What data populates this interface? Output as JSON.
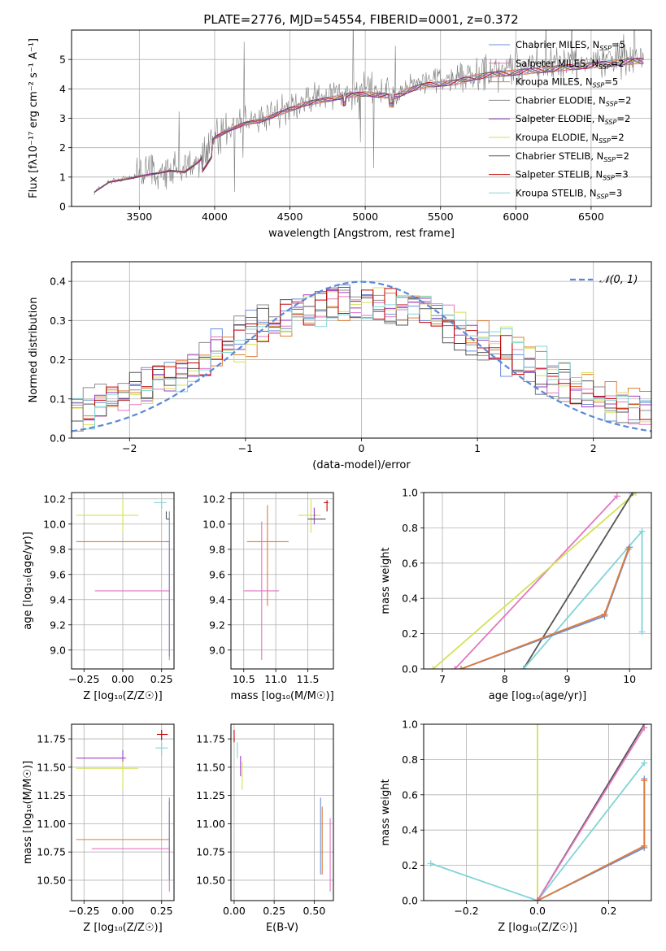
{
  "figure": {
    "title": "PLATE=2776, MJD=54554, FIBERID=0001, z=0.372"
  },
  "colors": {
    "chabrier_miles": "#6b8fd6",
    "salpeter_miles": "#e377c2",
    "kroupa_miles": "#e07b39",
    "chabrier_elodie": "#8c8c8c",
    "salpeter_elodie": "#9b3fc4",
    "kroupa_elodie": "#d4e157",
    "chabrier_stelib": "#555555",
    "salpeter_stelib": "#c00000",
    "kroupa_stelib": "#80d4d8",
    "gauss": "#5b88d6"
  },
  "chart_data": [
    {
      "id": "spectrum",
      "type": "line",
      "title": "PLATE=2776, MJD=54554, FIBERID=0001, z=0.372",
      "xlabel": "wavelength [Angstrom, rest frame]",
      "ylabel": "Flux [fλ10⁻¹⁷ erg cm⁻² s⁻¹ A⁻¹]",
      "xlim": [
        3050,
        6900
      ],
      "ylim": [
        0,
        6
      ],
      "xticks": [
        3500,
        4000,
        4500,
        5000,
        5500,
        6000,
        6500
      ],
      "yticks": [
        0,
        1,
        2,
        3,
        4,
        5
      ],
      "legend_position": "top-right",
      "legend": [
        {
          "key": "chabrier_miles",
          "label": "Chabrier MILES, N",
          "sub": "SSP",
          "suffix": "=5"
        },
        {
          "key": "salpeter_miles",
          "label": "Salpeter MILES, N",
          "sub": "SSP",
          "suffix": "=2"
        },
        {
          "key": "kroupa_miles",
          "label": "Kroupa MILES, N",
          "sub": "SSP",
          "suffix": "=5"
        },
        {
          "key": "chabrier_elodie",
          "label": "Chabrier ELODIE, N",
          "sub": "SSP",
          "suffix": "=2"
        },
        {
          "key": "salpeter_elodie",
          "label": "Salpeter ELODIE, N",
          "sub": "SSP",
          "suffix": "=2"
        },
        {
          "key": "kroupa_elodie",
          "label": "Kroupa ELODIE, N",
          "sub": "SSP",
          "suffix": "=2"
        },
        {
          "key": "chabrier_stelib",
          "label": "Chabrier STELIB, N",
          "sub": "SSP",
          "suffix": "=2"
        },
        {
          "key": "salpeter_stelib",
          "label": "Salpeter STELIB, N",
          "sub": "SSP",
          "suffix": "=3"
        },
        {
          "key": "kroupa_stelib",
          "label": "Kroupa STELIB, N",
          "sub": "SSP",
          "suffix": "=3"
        }
      ],
      "data_continuum": {
        "x": [
          3200,
          3300,
          3400,
          3500,
          3600,
          3700,
          3800,
          3900,
          4000,
          4100,
          4200,
          4300,
          4400,
          4500,
          4600,
          4700,
          4800,
          4900,
          5000,
          5100,
          5200,
          5300,
          5400,
          5500,
          5600,
          5700,
          5800,
          5900,
          6000,
          6100,
          6200,
          6300,
          6400,
          6500,
          6600,
          6700,
          6800
        ],
        "y": [
          0.5,
          0.85,
          0.95,
          1.05,
          1.15,
          1.25,
          1.2,
          1.6,
          2.4,
          2.7,
          2.9,
          3.0,
          3.2,
          3.4,
          3.6,
          3.7,
          3.8,
          3.9,
          3.95,
          3.9,
          3.85,
          4.1,
          4.25,
          4.3,
          4.35,
          4.5,
          4.6,
          4.65,
          4.7,
          4.75,
          4.8,
          4.85,
          4.9,
          4.95,
          5.0,
          5.05,
          5.1
        ]
      }
    },
    {
      "id": "residuals",
      "type": "step",
      "xlabel": "(data-model)/error",
      "ylabel": "Normed distribution",
      "xlim": [
        -2.5,
        2.5
      ],
      "ylim": [
        0,
        0.45
      ],
      "xticks": [
        -2,
        -1,
        0,
        1,
        2
      ],
      "yticks": [
        0.0,
        0.1,
        0.2,
        0.3,
        0.4
      ],
      "legend_position": "top-right",
      "gauss_label": "𝒩(0, 1)",
      "bin_centers": [
        -2.45,
        -2.35,
        -2.25,
        -2.15,
        -2.05,
        -1.95,
        -1.85,
        -1.75,
        -1.65,
        -1.55,
        -1.45,
        -1.35,
        -1.25,
        -1.15,
        -1.05,
        -0.95,
        -0.85,
        -0.75,
        -0.65,
        -0.55,
        -0.45,
        -0.35,
        -0.25,
        -0.15,
        -0.05,
        0.05,
        0.15,
        0.25,
        0.35,
        0.45,
        0.55,
        0.65,
        0.75,
        0.85,
        0.95,
        1.05,
        1.15,
        1.25,
        1.35,
        1.45,
        1.55,
        1.65,
        1.75,
        1.85,
        1.95,
        2.05,
        2.15,
        2.25,
        2.35,
        2.45
      ]
    },
    {
      "id": "age_vs_Z",
      "type": "errorbar",
      "xlabel": "Z [log₁₀(Z/Z☉)]",
      "ylabel": "age  [log₁₀(age/yr)]",
      "xlim": [
        -0.33,
        0.33
      ],
      "ylim": [
        8.85,
        10.25
      ],
      "xticks": [
        -0.25,
        0.0,
        0.25
      ],
      "xticklabels": [
        "−0.25",
        "0.00",
        "0.25"
      ],
      "yticks": [
        9.0,
        9.2,
        9.4,
        9.6,
        9.8,
        10.0,
        10.2
      ],
      "points": [
        {
          "key": "kroupa_elodie",
          "x": 0.0,
          "xlo": -0.3,
          "xhi": 0.1,
          "y": 10.07,
          "ylo": 9.93,
          "yhi": 10.2
        },
        {
          "key": "kroupa_miles",
          "x": 0.3,
          "xlo": -0.3,
          "xhi": 0.3,
          "y": 9.86,
          "ylo": 9.86,
          "yhi": 9.86
        },
        {
          "key": "salpeter_miles",
          "x": 0.3,
          "xlo": -0.18,
          "xhi": 0.3,
          "y": 9.47,
          "ylo": 8.92,
          "yhi": 9.86
        },
        {
          "key": "chabrier_miles",
          "x": 0.3,
          "xlo": 0.28,
          "xhi": 0.3,
          "y": 9.86,
          "ylo": 8.95,
          "yhi": 10.1
        },
        {
          "key": "kroupa_stelib",
          "x": 0.25,
          "xlo": 0.2,
          "xhi": 0.28,
          "y": 10.17,
          "ylo": 10.12,
          "yhi": 10.19
        },
        {
          "key": "chabrier_stelib",
          "x": 0.28,
          "xlo": 0.28,
          "xhi": 0.3,
          "y": 10.04,
          "ylo": 10.04,
          "yhi": 10.1
        }
      ]
    },
    {
      "id": "age_vs_mass",
      "type": "errorbar",
      "xlabel": "mass [log₁₀(M/M☉)]",
      "xlim": [
        10.3,
        11.9
      ],
      "ylim": [
        8.85,
        10.25
      ],
      "xticks": [
        10.5,
        11.0,
        11.5
      ],
      "yticks": [
        9.0,
        9.2,
        9.4,
        9.6,
        9.8,
        10.0,
        10.2
      ],
      "points": [
        {
          "key": "kroupa_elodie",
          "x": 11.55,
          "xlo": 11.35,
          "xhi": 11.7,
          "y": 10.07,
          "ylo": 9.93,
          "yhi": 10.2
        },
        {
          "key": "kroupa_miles",
          "x": 10.87,
          "xlo": 10.55,
          "xhi": 11.2,
          "y": 9.86,
          "ylo": 9.35,
          "yhi": 10.15
        },
        {
          "key": "salpeter_miles",
          "x": 10.78,
          "xlo": 10.5,
          "xhi": 11.05,
          "y": 9.47,
          "ylo": 8.92,
          "yhi": 10.02
        },
        {
          "key": "salpeter_elodie",
          "x": 11.6,
          "xlo": 11.6,
          "xhi": 11.62,
          "y": 10.07,
          "ylo": 10.0,
          "yhi": 10.13
        },
        {
          "key": "salpeter_stelib",
          "x": 11.8,
          "xlo": 11.75,
          "xhi": 11.82,
          "y": 10.17,
          "ylo": 10.1,
          "yhi": 10.19
        },
        {
          "key": "chabrier_stelib",
          "x": 11.62,
          "xlo": 11.5,
          "xhi": 11.78,
          "y": 10.04,
          "ylo": 10.04,
          "yhi": 10.04
        }
      ]
    },
    {
      "id": "weight_vs_age",
      "type": "line",
      "xlabel": "age  [log₁₀(age/yr)]",
      "ylabel": "mass weight",
      "xlim": [
        6.7,
        10.35
      ],
      "ylim": [
        0,
        1
      ],
      "xticks": [
        7,
        8,
        9,
        10
      ],
      "yticks": [
        0.0,
        0.2,
        0.4,
        0.6,
        0.8,
        1.0
      ],
      "series": [
        {
          "key": "salpeter_miles",
          "x": [
            7.2,
            9.8
          ],
          "y": [
            0.0,
            0.98
          ]
        },
        {
          "key": "kroupa_elodie",
          "x": [
            6.85,
            10.1
          ],
          "y": [
            0.0,
            1.0
          ]
        },
        {
          "key": "chabrier_stelib",
          "x": [
            8.3,
            10.05
          ],
          "y": [
            0.0,
            1.0
          ]
        },
        {
          "key": "kroupa_stelib",
          "x": [
            8.3,
            10.2,
            10.2
          ],
          "y": [
            0.0,
            0.78,
            0.21
          ]
        },
        {
          "key": "chabrier_miles",
          "x": [
            7.3,
            9.6,
            10.0
          ],
          "y": [
            0.0,
            0.3,
            0.69
          ]
        },
        {
          "key": "kroupa_miles",
          "x": [
            7.3,
            9.6,
            9.98
          ],
          "y": [
            0.0,
            0.31,
            0.68
          ]
        }
      ]
    },
    {
      "id": "mass_vs_Z",
      "type": "errorbar",
      "xlabel": "Z [log₁₀(Z/Z☉)]",
      "ylabel": "mass [log₁₀(M/M☉)]",
      "xlim": [
        -0.33,
        0.33
      ],
      "ylim": [
        10.32,
        11.88
      ],
      "xticks": [
        -0.25,
        0.0,
        0.25
      ],
      "xticklabels": [
        "−0.25",
        "0.00",
        "0.25"
      ],
      "yticks": [
        10.5,
        10.75,
        11.0,
        11.25,
        11.5,
        11.75
      ],
      "points": [
        {
          "key": "salpeter_elodie",
          "x": 0.0,
          "xlo": -0.3,
          "xhi": 0.02,
          "y": 11.58,
          "ylo": 11.5,
          "yhi": 11.65
        },
        {
          "key": "kroupa_elodie",
          "x": 0.0,
          "xlo": -0.3,
          "xhi": 0.1,
          "y": 11.49,
          "ylo": 11.3,
          "yhi": 11.55
        },
        {
          "key": "salpeter_stelib",
          "x": 0.25,
          "xlo": 0.22,
          "xhi": 0.29,
          "y": 11.79,
          "ylo": 11.74,
          "yhi": 11.83
        },
        {
          "key": "kroupa_stelib",
          "x": 0.25,
          "xlo": 0.21,
          "xhi": 0.29,
          "y": 11.67,
          "ylo": 11.6,
          "yhi": 11.72
        },
        {
          "key": "kroupa_miles",
          "x": 0.3,
          "xlo": -0.3,
          "xhi": 0.3,
          "y": 10.86,
          "ylo": 10.55,
          "yhi": 11.2
        },
        {
          "key": "salpeter_miles",
          "x": 0.3,
          "xlo": -0.2,
          "xhi": 0.3,
          "y": 10.78,
          "ylo": 10.4,
          "yhi": 11.1
        },
        {
          "key": "chabrier_miles",
          "x": 0.3,
          "xlo": 0.3,
          "xhi": 0.3,
          "y": 10.86,
          "ylo": 10.5,
          "yhi": 11.23
        }
      ]
    },
    {
      "id": "mass_vs_ebv",
      "type": "errorbar",
      "xlabel": "E(B-V)",
      "xlim": [
        -0.02,
        0.62
      ],
      "ylim": [
        10.32,
        11.88
      ],
      "xticks": [
        0.0,
        0.25,
        0.5
      ],
      "xticklabels": [
        "0.00",
        "0.25",
        "0.50"
      ],
      "yticks": [
        10.5,
        10.75,
        11.0,
        11.25,
        11.5,
        11.75
      ],
      "points": [
        {
          "key": "salpeter_stelib",
          "x": 0.0,
          "xlo": 0.0,
          "xhi": 0.0,
          "y": 11.79,
          "ylo": 11.72,
          "yhi": 11.83
        },
        {
          "key": "kroupa_stelib",
          "x": 0.02,
          "xlo": 0.02,
          "xhi": 0.02,
          "y": 11.65,
          "ylo": 11.58,
          "yhi": 11.72
        },
        {
          "key": "salpeter_elodie",
          "x": 0.04,
          "xlo": 0.04,
          "xhi": 0.04,
          "y": 11.5,
          "ylo": 11.42,
          "yhi": 11.6
        },
        {
          "key": "kroupa_elodie",
          "x": 0.05,
          "xlo": 0.05,
          "xhi": 0.05,
          "y": 11.4,
          "ylo": 11.3,
          "yhi": 11.55
        },
        {
          "key": "chabrier_miles",
          "x": 0.54,
          "xlo": 0.54,
          "xhi": 0.54,
          "y": 10.9,
          "ylo": 10.55,
          "yhi": 11.23
        },
        {
          "key": "kroupa_miles",
          "x": 0.55,
          "xlo": 0.55,
          "xhi": 0.55,
          "y": 10.85,
          "ylo": 10.55,
          "yhi": 11.15
        },
        {
          "key": "salpeter_miles",
          "x": 0.6,
          "xlo": 0.6,
          "xhi": 0.6,
          "y": 10.8,
          "ylo": 10.4,
          "yhi": 11.05
        }
      ]
    },
    {
      "id": "weight_vs_Z",
      "type": "line",
      "xlabel": "Z [log₁₀(Z/Z☉)]",
      "ylabel": "mass weight",
      "xlim": [
        -0.32,
        0.32
      ],
      "ylim": [
        0,
        1
      ],
      "xticks": [
        -0.2,
        0.0,
        0.2
      ],
      "xticklabels": [
        "−0.2",
        "0.0",
        "0.2"
      ],
      "yticks": [
        0.0,
        0.2,
        0.4,
        0.6,
        0.8,
        1.0
      ],
      "series": [
        {
          "key": "kroupa_stelib",
          "x": [
            -0.3,
            0.0,
            0.3
          ],
          "y": [
            0.21,
            0.0,
            0.78
          ]
        },
        {
          "key": "kroupa_elodie",
          "x": [
            0.0,
            0.0
          ],
          "y": [
            0.0,
            1.0
          ]
        },
        {
          "key": "chabrier_stelib",
          "x": [
            0.0,
            0.3
          ],
          "y": [
            0.0,
            1.0
          ]
        },
        {
          "key": "salpeter_miles",
          "x": [
            0.0,
            0.3
          ],
          "y": [
            0.0,
            0.98
          ]
        },
        {
          "key": "chabrier_miles",
          "x": [
            0.0,
            0.3,
            0.3
          ],
          "y": [
            0.0,
            0.3,
            0.69
          ]
        },
        {
          "key": "kroupa_miles",
          "x": [
            0.0,
            0.3,
            0.3
          ],
          "y": [
            0.0,
            0.31,
            0.68
          ]
        }
      ]
    }
  ]
}
